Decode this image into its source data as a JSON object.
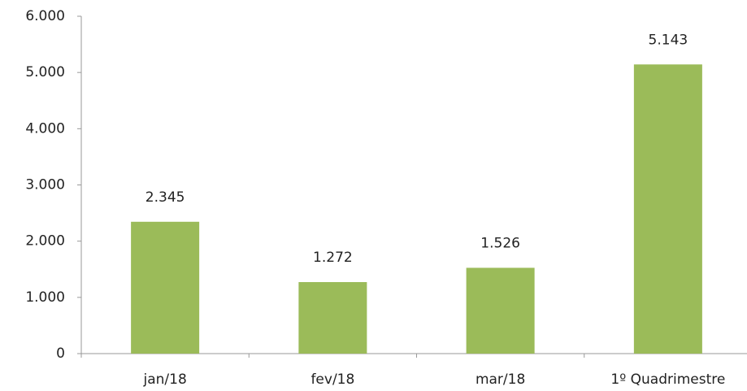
{
  "chart_data": {
    "type": "bar",
    "categories": [
      "jan/18",
      "fev/18",
      "mar/18",
      "1º Quadrimestre"
    ],
    "values": [
      2345,
      1272,
      1526,
      5143
    ],
    "value_labels": [
      "2.345",
      "1.272",
      "1.526",
      "5.143"
    ],
    "color": "#9bbb59",
    "ylim": [
      0,
      6000
    ],
    "yticks": [
      0,
      {
        "value": 1000,
        "label": "1.000"
      },
      {
        "value": 2000,
        "label": "2.000"
      },
      {
        "value": 3000,
        "label": "3.000"
      },
      {
        "value": 4000,
        "label": "4.000"
      },
      {
        "value": 5000,
        "label": "5.000"
      },
      {
        "value": 6000,
        "label": "6.000"
      }
    ]
  }
}
